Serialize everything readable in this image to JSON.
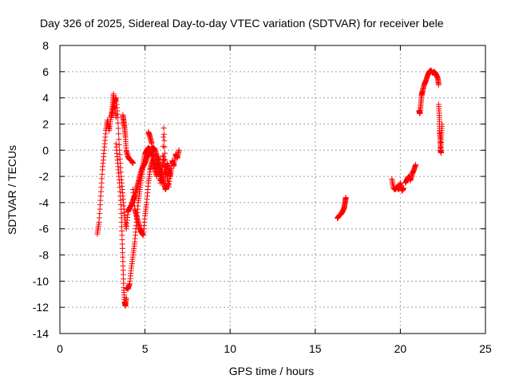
{
  "chart_data": {
    "type": "scatter",
    "title": "Day 326 of 2025, Sidereal Day-to-day VTEC variation (SDTVAR) for receiver bele",
    "xlabel": "GPS time / hours",
    "ylabel": "SDTVAR / TECUs",
    "xlim": [
      0,
      25
    ],
    "ylim": [
      -14,
      8
    ],
    "xticks": [
      0,
      5,
      10,
      15,
      20,
      25
    ],
    "yticks": [
      -14,
      -12,
      -10,
      -8,
      -6,
      -4,
      -2,
      0,
      2,
      4,
      6,
      8
    ],
    "grid": true,
    "marker": "+",
    "color": "#ff0000",
    "segments": [
      {
        "name": "arc-1a",
        "x": [
          2.2,
          2.3,
          2.4,
          2.5,
          2.6,
          2.7,
          2.8,
          2.9,
          3.0,
          3.1,
          3.15,
          3.2,
          3.3
        ],
        "y": [
          -6.4,
          -5.5,
          -3.5,
          -1.5,
          0.0,
          1.5,
          2.3,
          1.5,
          2.5,
          3.5,
          4.3,
          3.5,
          2.5
        ]
      },
      {
        "name": "arc-1b",
        "x": [
          3.3,
          3.4,
          3.5,
          3.6,
          3.65,
          3.7,
          3.75,
          3.8,
          3.85,
          3.9
        ],
        "y": [
          0.5,
          -1.0,
          -2.5,
          -4.5,
          -6.5,
          -8.5,
          -10.5,
          -11.6,
          -11.9,
          -11.3
        ]
      },
      {
        "name": "arc-1c",
        "x": [
          3.9,
          4.0,
          4.1,
          4.2,
          4.3,
          4.4,
          4.5,
          4.6,
          4.7,
          4.8,
          4.9,
          5.0,
          5.1,
          5.2,
          5.3,
          5.4,
          5.5
        ],
        "y": [
          -10.5,
          -10.6,
          -10.2,
          -9.0,
          -8.0,
          -7.0,
          -5.5,
          -4.0,
          -3.0,
          -2.0,
          -1.0,
          -0.3,
          0.0,
          0.2,
          0.0,
          -0.3,
          -0.5
        ]
      },
      {
        "name": "arc-2a",
        "x": [
          3.7,
          3.75,
          3.8,
          3.85,
          3.9,
          4.0,
          4.1,
          4.2,
          4.3
        ],
        "y": [
          2.7,
          2.2,
          1.7,
          1.0,
          0.0,
          -0.5,
          -0.7,
          -0.8,
          -1.0
        ]
      },
      {
        "name": "arc-2b",
        "x": [
          4.3,
          4.4,
          4.5,
          4.6,
          4.7,
          4.8,
          4.9,
          5.0,
          5.1,
          5.2,
          5.3,
          5.4,
          5.5,
          5.6,
          5.7,
          5.8,
          5.9,
          6.0,
          6.1,
          6.2,
          6.3,
          6.4,
          6.5,
          6.6,
          6.7,
          6.8,
          6.9,
          7.0
        ],
        "y": [
          -3.0,
          -4.5,
          -5.0,
          -5.5,
          -6.0,
          -6.3,
          -6.5,
          -5.0,
          -4.0,
          -2.5,
          -1.5,
          -1.0,
          -0.5,
          -1.5,
          -2.0,
          -1.0,
          -2.5,
          -1.5,
          -0.5,
          -2.0,
          -1.0,
          -1.5,
          -2.0,
          -0.8,
          -1.2,
          -0.3,
          -0.6,
          0.0
        ]
      },
      {
        "name": "arc-2c",
        "x": [
          3.0,
          3.1,
          3.2,
          3.3,
          3.4,
          3.5,
          3.6,
          3.7,
          3.8,
          3.9,
          4.0,
          4.1,
          4.2,
          4.3,
          4.4,
          4.5,
          4.6,
          4.7,
          4.8,
          4.9,
          5.0,
          5.1,
          5.2,
          5.3,
          5.4,
          5.5,
          5.6,
          5.7,
          5.8,
          5.9,
          6.0,
          6.1,
          6.2,
          6.3
        ],
        "y": [
          2.5,
          3.0,
          3.6,
          4.0,
          2.5,
          0.0,
          -2.0,
          -3.5,
          -5.0,
          -6.0,
          -4.7,
          -4.4,
          -4.2,
          -3.8,
          -3.5,
          -3.0,
          -2.5,
          -2.0,
          -1.5,
          -1.2,
          -1.0,
          -0.6,
          -0.3,
          -0.1,
          0.1,
          0.2,
          0.0,
          -0.5,
          -1.0,
          -1.5,
          -2.0,
          -2.5,
          -3.0,
          -2.7
        ]
      },
      {
        "name": "arc-2d",
        "x": [
          5.2,
          5.3,
          5.4,
          5.5,
          5.6,
          5.7,
          5.8,
          5.9,
          6.0,
          6.1,
          6.2,
          6.3,
          6.4,
          6.5
        ],
        "y": [
          1.4,
          1.0,
          0.5,
          -0.8,
          -1.5,
          -1.0,
          -0.5,
          -1.8,
          -2.5,
          1.7,
          -1.2,
          -2.0,
          -2.8,
          -1.5
        ]
      },
      {
        "name": "arc-3",
        "x": [
          16.3,
          16.4,
          16.5,
          16.6,
          16.7,
          16.75,
          16.8
        ],
        "y": [
          -5.2,
          -5.0,
          -4.9,
          -4.7,
          -4.4,
          -4.0,
          -3.6
        ]
      },
      {
        "name": "arc-4a",
        "x": [
          19.5,
          19.6,
          19.7,
          19.8,
          19.9,
          20.0,
          20.1,
          20.2
        ],
        "y": [
          -2.2,
          -2.9,
          -3.0,
          -2.8,
          -3.0,
          -2.5,
          -3.1,
          -2.9
        ]
      },
      {
        "name": "arc-4b",
        "x": [
          20.3,
          20.4,
          20.5,
          20.6,
          20.7,
          20.8,
          20.9
        ],
        "y": [
          -2.5,
          -2.2,
          -2.0,
          -2.3,
          -1.8,
          -1.5,
          -1.1
        ]
      },
      {
        "name": "arc-4c",
        "x": [
          21.1,
          21.15,
          21.2,
          21.25,
          21.3,
          21.4,
          21.5,
          21.6,
          21.7,
          21.8,
          21.9,
          22.0,
          22.1,
          22.2,
          22.25
        ],
        "y": [
          3.0,
          2.8,
          3.5,
          4.2,
          4.5,
          5.0,
          5.3,
          5.7,
          6.0,
          6.1,
          5.9,
          6.0,
          5.8,
          5.5,
          5.0
        ]
      },
      {
        "name": "arc-4d",
        "x": [
          22.25,
          22.3,
          22.3,
          22.35,
          22.35,
          22.4,
          22.4,
          22.45
        ],
        "y": [
          3.5,
          2.5,
          1.5,
          0.8,
          0.0,
          -0.2,
          1.0,
          2.0
        ]
      }
    ]
  }
}
